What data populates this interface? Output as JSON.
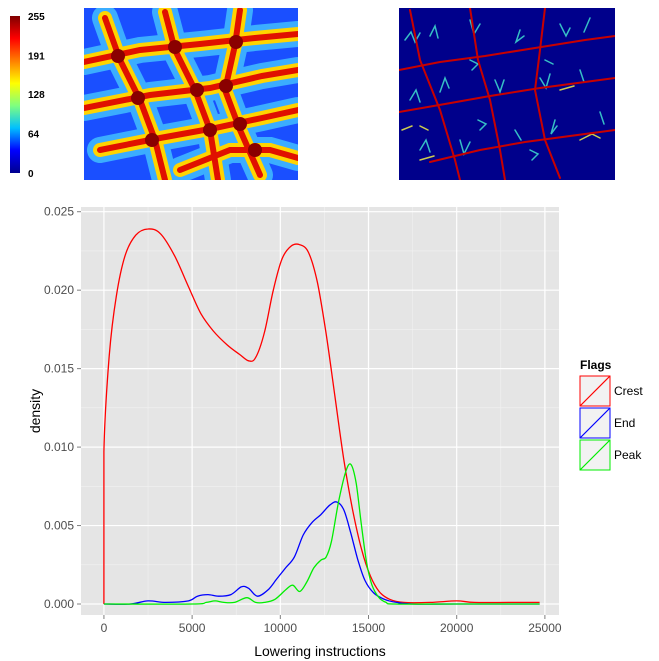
{
  "colorbar": {
    "ticks": [
      "255",
      "191",
      "128",
      "64",
      "0"
    ],
    "stops": [
      "#00008f",
      "#0000ff",
      "#00bfff",
      "#7fff7f",
      "#ffff00",
      "#ff7f00",
      "#ff0000",
      "#7f0000"
    ]
  },
  "chart_data": {
    "type": "line",
    "title": "",
    "xlabel": "Lowering instructions",
    "ylabel": "density",
    "xlim": [
      -1300,
      25800
    ],
    "ylim": [
      -0.0007,
      0.0253
    ],
    "x_ticks": [
      0,
      5000,
      10000,
      15000,
      20000,
      25000
    ],
    "x_tick_labels": [
      "0",
      "5000",
      "10000",
      "15000",
      "20000",
      "25000"
    ],
    "y_ticks": [
      0.0,
      0.005,
      0.01,
      0.015,
      0.02,
      0.025
    ],
    "y_tick_labels": [
      "0.000",
      "0.005",
      "0.010",
      "0.015",
      "0.020",
      "0.025"
    ],
    "grid": true,
    "background": "#e5e5e5",
    "legend": {
      "title": "Flags",
      "position": "right"
    },
    "series": [
      {
        "name": "Crest",
        "color": "#ff0000",
        "points": [
          [
            0,
            0.0
          ],
          [
            0,
            0.0097
          ],
          [
            300,
            0.0158
          ],
          [
            700,
            0.0196
          ],
          [
            1200,
            0.0222
          ],
          [
            1800,
            0.0235
          ],
          [
            2500,
            0.0239
          ],
          [
            3200,
            0.0236
          ],
          [
            4000,
            0.0222
          ],
          [
            4800,
            0.0202
          ],
          [
            5500,
            0.0185
          ],
          [
            6200,
            0.0174
          ],
          [
            7000,
            0.0165
          ],
          [
            7700,
            0.0159
          ],
          [
            8200,
            0.0155
          ],
          [
            8600,
            0.0157
          ],
          [
            9100,
            0.0173
          ],
          [
            9600,
            0.02
          ],
          [
            10100,
            0.022
          ],
          [
            10600,
            0.0228
          ],
          [
            11100,
            0.0229
          ],
          [
            11600,
            0.0224
          ],
          [
            12100,
            0.0205
          ],
          [
            12600,
            0.0172
          ],
          [
            13100,
            0.0132
          ],
          [
            13600,
            0.0092
          ],
          [
            14100,
            0.006
          ],
          [
            14600,
            0.0035
          ],
          [
            15100,
            0.0018
          ],
          [
            15600,
            0.0008
          ],
          [
            16200,
            0.0003
          ],
          [
            17000,
            0.0001
          ],
          [
            18500,
            0.0001
          ],
          [
            20000,
            0.0002
          ],
          [
            21000,
            0.0001
          ],
          [
            23000,
            0.0001
          ],
          [
            24700,
            0.0001
          ]
        ]
      },
      {
        "name": "End",
        "color": "#0000ff",
        "points": [
          [
            0,
            0.0
          ],
          [
            1500,
            0.0
          ],
          [
            2500,
            0.0002
          ],
          [
            3500,
            0.0001
          ],
          [
            4800,
            0.0002
          ],
          [
            5300,
            0.0005
          ],
          [
            5900,
            0.0006
          ],
          [
            6500,
            0.0005
          ],
          [
            7200,
            0.0006
          ],
          [
            7800,
            0.0011
          ],
          [
            8200,
            0.001
          ],
          [
            8700,
            0.0005
          ],
          [
            9300,
            0.0009
          ],
          [
            9800,
            0.0016
          ],
          [
            10300,
            0.0023
          ],
          [
            10800,
            0.003
          ],
          [
            11300,
            0.0044
          ],
          [
            11800,
            0.0052
          ],
          [
            12300,
            0.0057
          ],
          [
            12800,
            0.0063
          ],
          [
            13200,
            0.0065
          ],
          [
            13600,
            0.006
          ],
          [
            14000,
            0.0045
          ],
          [
            14400,
            0.0028
          ],
          [
            14800,
            0.0015
          ],
          [
            15300,
            0.0007
          ],
          [
            15900,
            0.0003
          ],
          [
            16600,
            0.0001
          ],
          [
            17500,
            0.0
          ],
          [
            20000,
            0.0
          ],
          [
            24700,
            0.0
          ]
        ]
      },
      {
        "name": "Peak",
        "color": "#00ee00",
        "points": [
          [
            0,
            0.0
          ],
          [
            5000,
            0.0
          ],
          [
            5800,
            0.0001
          ],
          [
            6300,
            0.0002
          ],
          [
            6800,
            0.0001
          ],
          [
            7400,
            0.0001
          ],
          [
            8100,
            0.0004
          ],
          [
            8600,
            0.0001
          ],
          [
            9100,
            0.0001
          ],
          [
            9700,
            0.0003
          ],
          [
            10300,
            0.0009
          ],
          [
            10700,
            0.0012
          ],
          [
            11100,
            0.0008
          ],
          [
            11500,
            0.0014
          ],
          [
            11900,
            0.0023
          ],
          [
            12300,
            0.0028
          ],
          [
            12600,
            0.003
          ],
          [
            12900,
            0.004
          ],
          [
            13300,
            0.0065
          ],
          [
            13700,
            0.0084
          ],
          [
            14000,
            0.0089
          ],
          [
            14300,
            0.0077
          ],
          [
            14600,
            0.005
          ],
          [
            14900,
            0.0026
          ],
          [
            15200,
            0.0012
          ],
          [
            15600,
            0.0004
          ],
          [
            16000,
            0.0001
          ],
          [
            16500,
            0.0
          ],
          [
            20000,
            0.0
          ],
          [
            24700,
            0.0
          ]
        ]
      }
    ]
  }
}
